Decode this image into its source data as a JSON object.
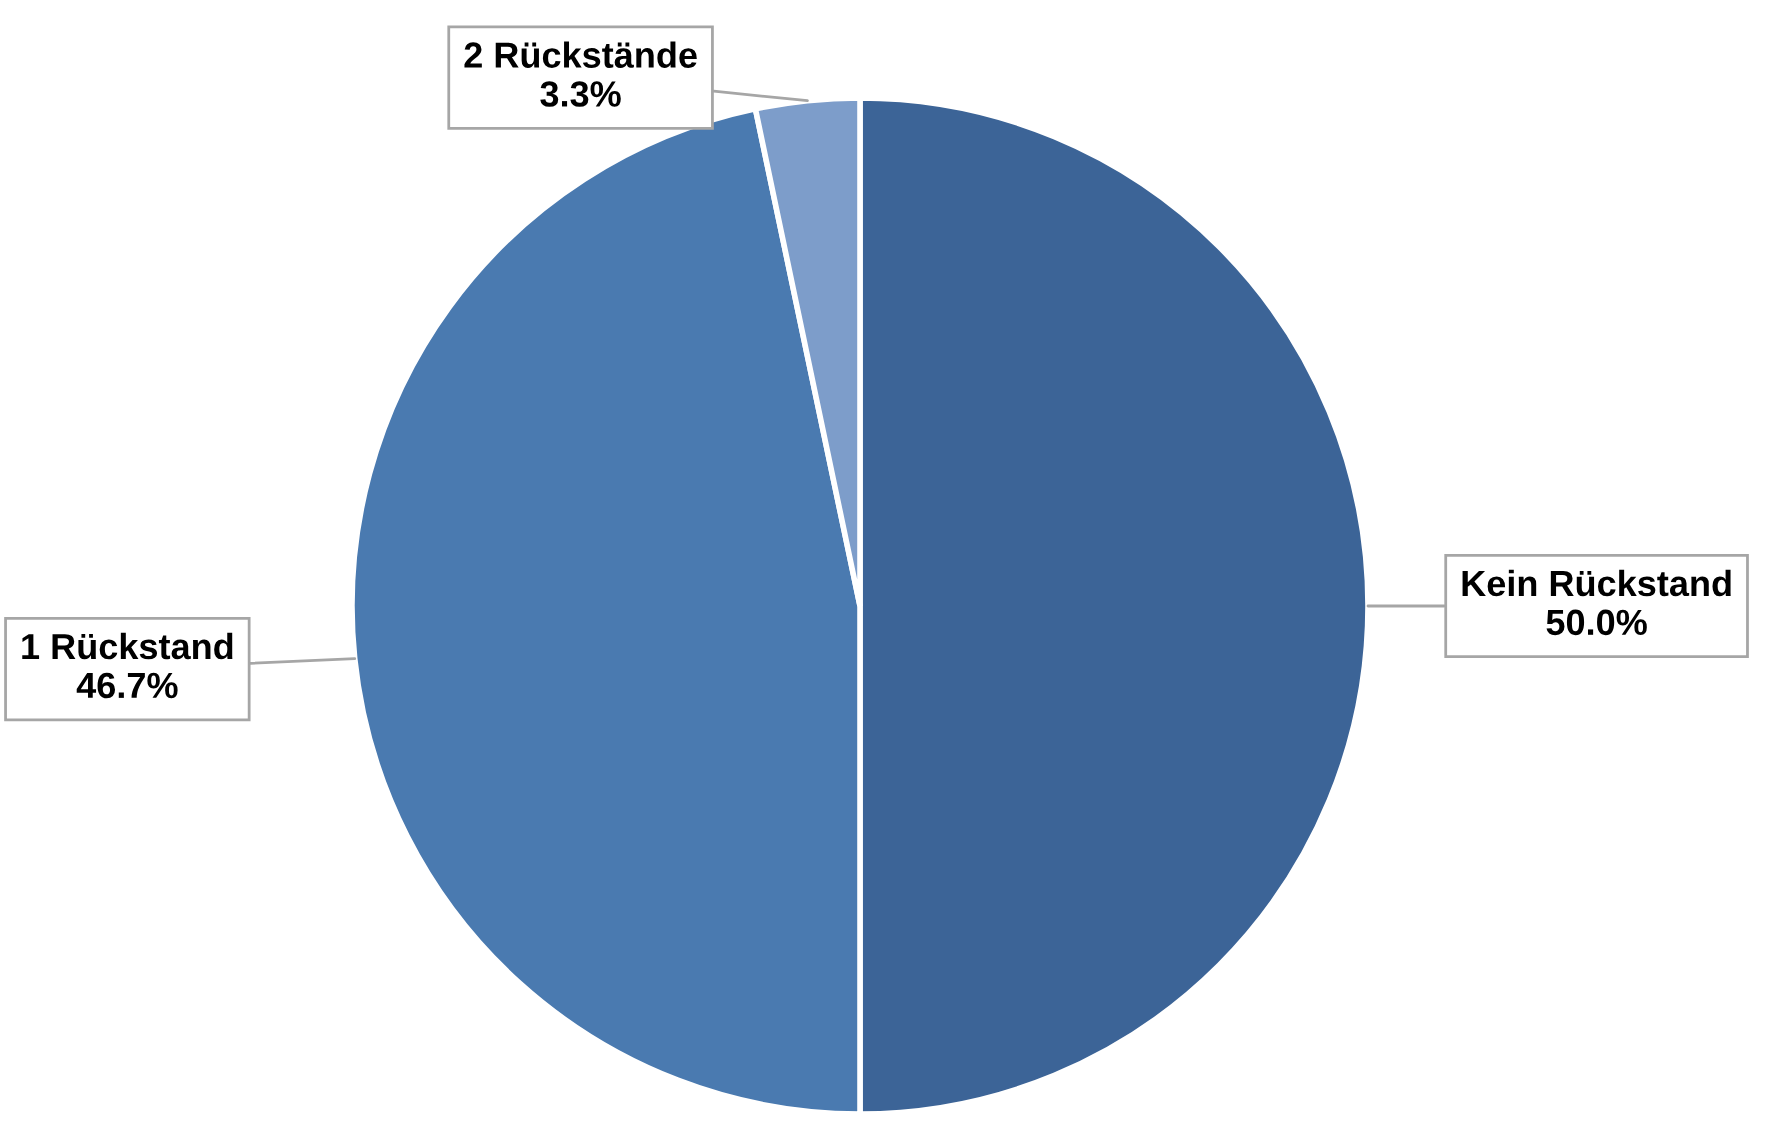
{
  "chart_data": {
    "type": "pie",
    "categories": [
      "Kein Rückstand",
      "1 Rückstand",
      "2 Rückstände"
    ],
    "values": [
      50.0,
      46.7,
      3.3
    ],
    "value_labels": [
      "50.0%",
      "46.7%",
      "3.3%"
    ],
    "colors": [
      "#3c6497",
      "#4a7ab0",
      "#7d9dca"
    ],
    "legend": false
  }
}
